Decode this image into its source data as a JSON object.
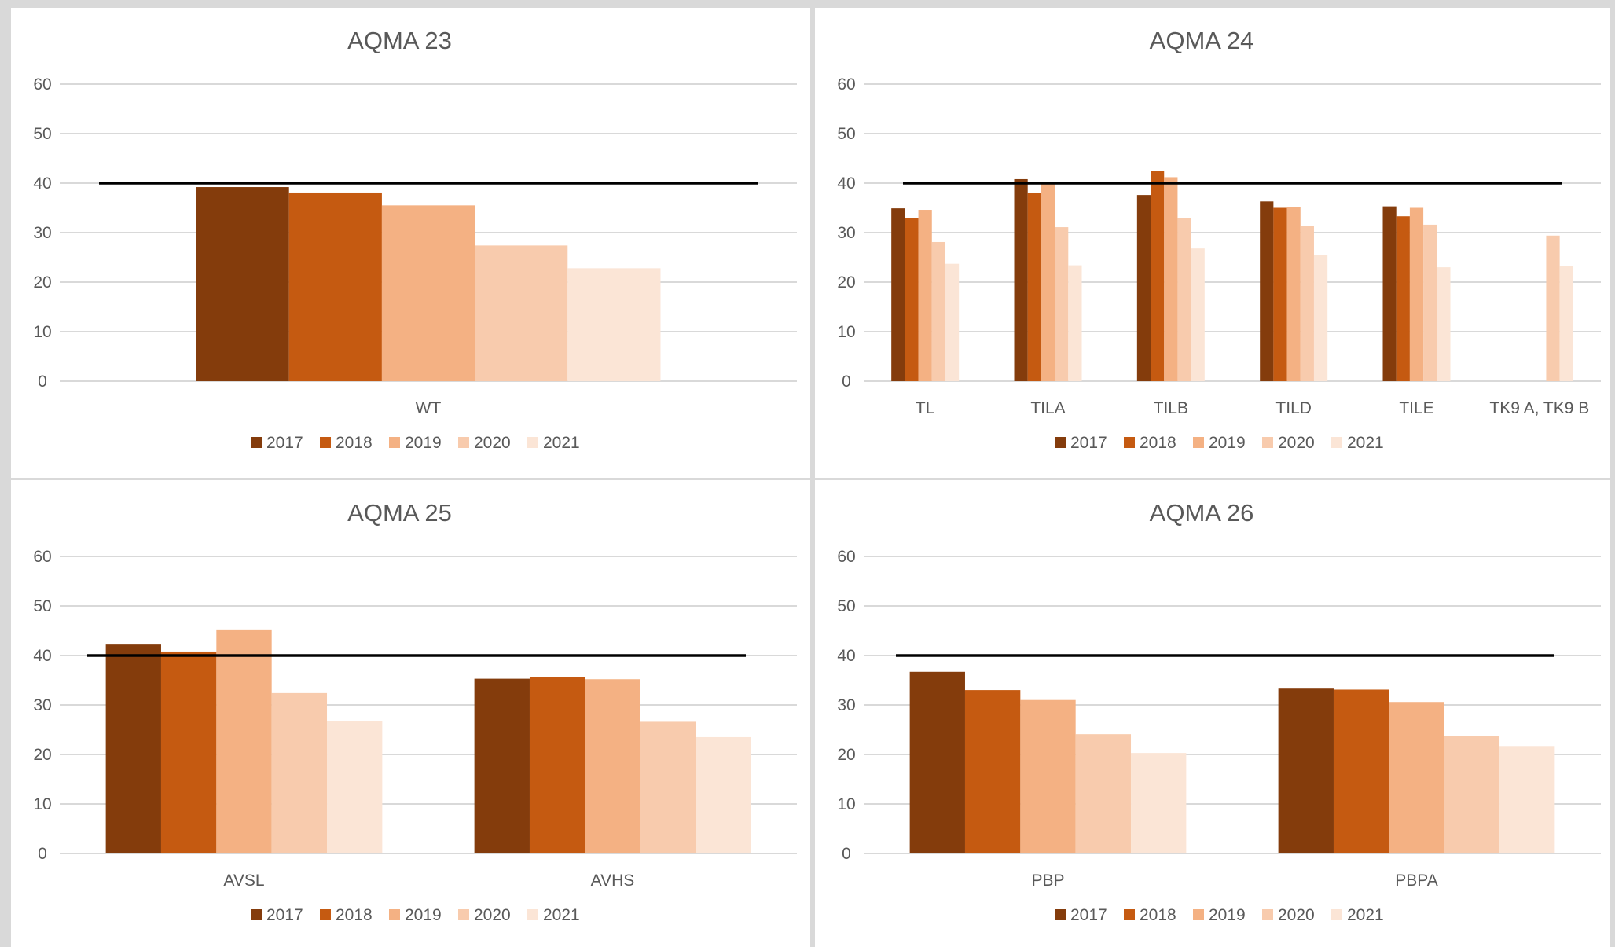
{
  "colors": {
    "series": [
      "#843c0c",
      "#c55a11",
      "#f4b183",
      "#f8cbad",
      "#fbe5d6"
    ],
    "limit_line": "#000000",
    "gridline": "#d9d9d9",
    "text": "#595959"
  },
  "chart_data": [
    {
      "type": "bar",
      "title": "AQMA 23",
      "categories": [
        "WT"
      ],
      "ylim": [
        0,
        60
      ],
      "yticks": [
        0,
        10,
        20,
        30,
        40,
        50,
        60
      ],
      "legend": "bottom",
      "limit_value": 40,
      "series": [
        {
          "name": "2017",
          "values": [
            39.2
          ]
        },
        {
          "name": "2018",
          "values": [
            38.1
          ]
        },
        {
          "name": "2019",
          "values": [
            35.5
          ]
        },
        {
          "name": "2020",
          "values": [
            27.4
          ]
        },
        {
          "name": "2021",
          "values": [
            22.8
          ]
        }
      ]
    },
    {
      "type": "bar",
      "title": "AQMA 24",
      "categories": [
        "TL",
        "TILA",
        "TILB",
        "TILD",
        "TILE",
        "TK9 A, TK9 B"
      ],
      "ylim": [
        0,
        60
      ],
      "yticks": [
        0,
        10,
        20,
        30,
        40,
        50,
        60
      ],
      "legend": "bottom",
      "limit_value": 40,
      "series": [
        {
          "name": "2017",
          "values": [
            34.9,
            40.8,
            37.6,
            36.3,
            35.3,
            null
          ]
        },
        {
          "name": "2018",
          "values": [
            33.0,
            38.0,
            42.4,
            35.0,
            33.3,
            null
          ]
        },
        {
          "name": "2019",
          "values": [
            34.6,
            39.9,
            41.2,
            35.1,
            35.0,
            null
          ]
        },
        {
          "name": "2020",
          "values": [
            28.1,
            31.1,
            32.9,
            31.3,
            31.6,
            29.4
          ]
        },
        {
          "name": "2021",
          "values": [
            23.7,
            23.4,
            26.8,
            25.4,
            23.0,
            23.2
          ]
        }
      ]
    },
    {
      "type": "bar",
      "title": "AQMA 25",
      "categories": [
        "AVSL",
        "AVHS"
      ],
      "ylim": [
        0,
        60
      ],
      "yticks": [
        0,
        10,
        20,
        30,
        40,
        50,
        60
      ],
      "legend": "bottom",
      "limit_value": 40,
      "series": [
        {
          "name": "2017",
          "values": [
            42.2,
            35.3
          ]
        },
        {
          "name": "2018",
          "values": [
            40.8,
            35.7
          ]
        },
        {
          "name": "2019",
          "values": [
            45.1,
            35.2
          ]
        },
        {
          "name": "2020",
          "values": [
            32.4,
            26.6
          ]
        },
        {
          "name": "2021",
          "values": [
            26.8,
            23.5
          ]
        }
      ]
    },
    {
      "type": "bar",
      "title": "AQMA 26",
      "categories": [
        "PBP",
        "PBPA"
      ],
      "ylim": [
        0,
        60
      ],
      "yticks": [
        0,
        10,
        20,
        30,
        40,
        50,
        60
      ],
      "legend": "bottom",
      "limit_value": 40,
      "series": [
        {
          "name": "2017",
          "values": [
            36.7,
            33.3
          ]
        },
        {
          "name": "2018",
          "values": [
            33.0,
            33.1
          ]
        },
        {
          "name": "2019",
          "values": [
            31.0,
            30.6
          ]
        },
        {
          "name": "2020",
          "values": [
            24.1,
            23.7
          ]
        },
        {
          "name": "2021",
          "values": [
            20.3,
            21.7
          ]
        }
      ]
    }
  ]
}
